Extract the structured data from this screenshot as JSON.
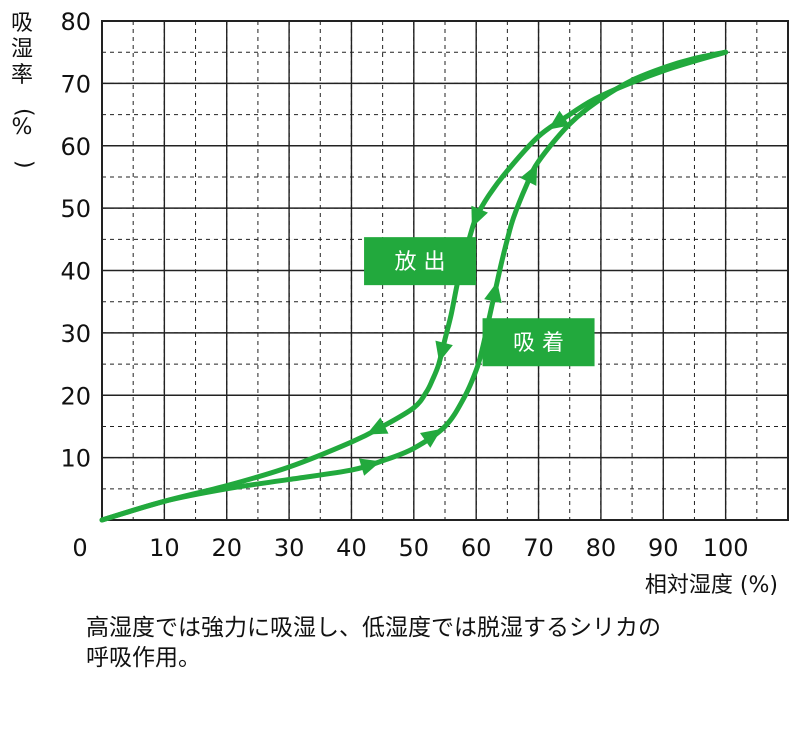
{
  "chart_data": {
    "type": "line",
    "title": "",
    "xlabel": "相対湿度 (%)",
    "ylabel_chars": [
      "吸",
      "湿",
      "率",
      "(",
      "%",
      ")"
    ],
    "ylim": [
      0,
      80
    ],
    "xlim": [
      0,
      110
    ],
    "xticks": [
      "0",
      "10",
      "20",
      "30",
      "40",
      "50",
      "60",
      "70",
      "80",
      "90",
      "100"
    ],
    "yticks": [
      "10",
      "20",
      "30",
      "40",
      "50",
      "60",
      "70",
      "80"
    ],
    "grid": "dashed",
    "series": [
      {
        "name": "吸着",
        "color": "#22a93d",
        "direction": "increasing",
        "x": [
          0,
          10,
          20,
          30,
          40,
          45,
          50,
          55,
          58,
          60,
          61,
          62,
          63,
          64,
          65,
          66,
          68,
          70,
          75,
          80,
          85,
          90,
          95,
          100
        ],
        "y": [
          0,
          3,
          5,
          6.5,
          8,
          9.5,
          11.5,
          15,
          19.5,
          24,
          27.5,
          32,
          36.5,
          41,
          45,
          48.5,
          53.5,
          57.5,
          63.5,
          67.5,
          70.5,
          72.5,
          74,
          75
        ],
        "arrows_at_x": [
          43,
          53,
          63,
          69
        ]
      },
      {
        "name": "放出",
        "color": "#22a93d",
        "direction": "decreasing",
        "x": [
          100,
          90,
          80,
          75,
          70,
          65,
          62,
          60,
          59,
          58,
          57,
          56,
          55,
          54,
          53,
          52,
          50,
          45,
          40,
          30,
          20,
          10,
          0
        ],
        "y": [
          75,
          72,
          68,
          65,
          61.5,
          56,
          52,
          48.5,
          45.5,
          42,
          38,
          33,
          29,
          25,
          22.5,
          20.5,
          18,
          15,
          12.5,
          8.5,
          5.5,
          3,
          0
        ],
        "arrows_at_x": [
          73,
          60,
          54.5,
          44
        ]
      }
    ],
    "annotations": [
      {
        "label": "放 出",
        "x": 51,
        "y": 41.5
      },
      {
        "label": "吸 着",
        "x": 70,
        "y": 28.5
      }
    ]
  },
  "caption": {
    "line1": "高湿度では強力に吸湿し、低湿度では脱湿するシリカの",
    "line2": "呼吸作用。"
  },
  "colors": {
    "curve": "#22a93d",
    "label_box": "#22a93d",
    "label_text": "#ffffff",
    "grid": "#222222"
  }
}
